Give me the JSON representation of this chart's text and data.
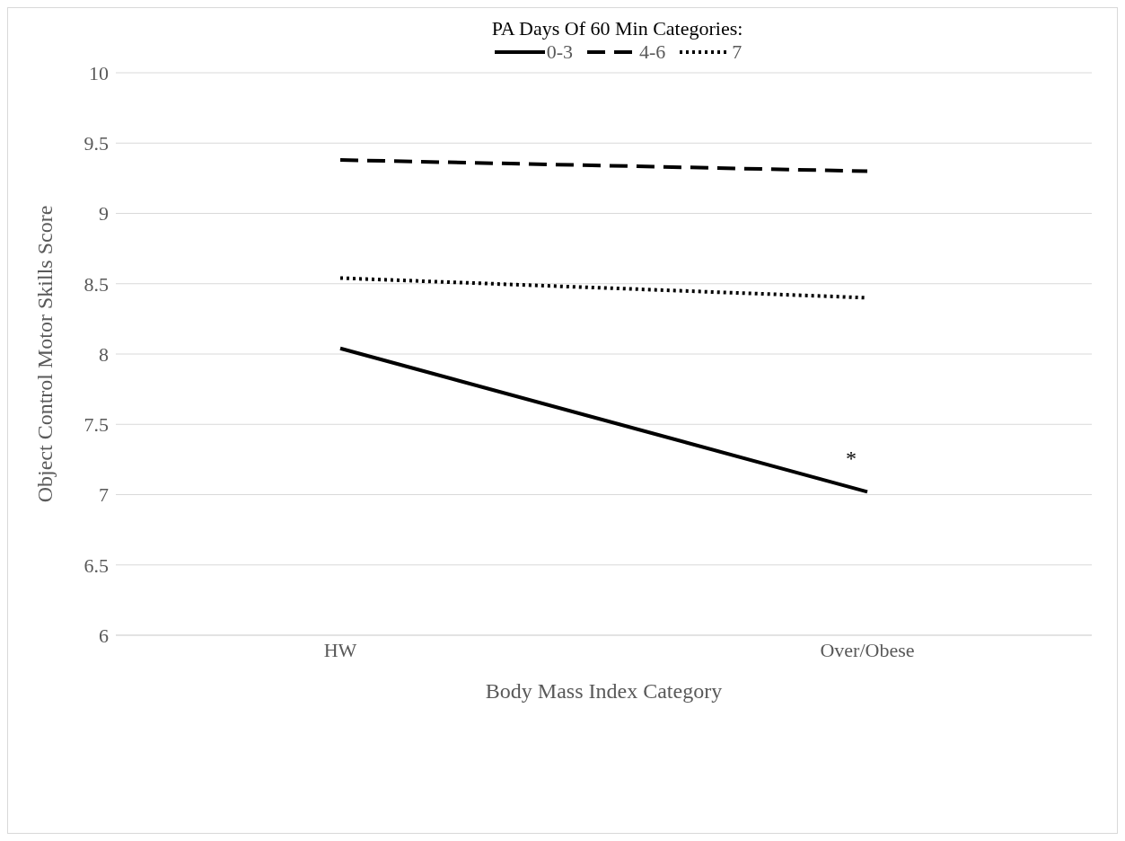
{
  "chart_data": {
    "type": "line",
    "legend_title": "PA Days Of 60 Min Categories:",
    "xlabel": "Body Mass Index Category",
    "ylabel": "Object Control Motor Skills Score",
    "categories": [
      "HW",
      "Over/Obese"
    ],
    "series": [
      {
        "name": "0-3",
        "color": "#000000",
        "line_style": "solid",
        "values": [
          8.04,
          7.02
        ]
      },
      {
        "name": "4-6",
        "color": "#000000",
        "line_style": "dashed",
        "values": [
          9.38,
          9.3
        ]
      },
      {
        "name": "7",
        "color": "#000000",
        "line_style": "dotted",
        "values": [
          8.54,
          8.4
        ]
      }
    ],
    "ylim": [
      6,
      10
    ],
    "yticks": [
      6,
      6.5,
      7,
      7.5,
      8,
      8.5,
      9,
      9.5,
      10
    ],
    "grid": "y",
    "legend": "top",
    "marker": "none",
    "annotations": [
      "*"
    ]
  }
}
